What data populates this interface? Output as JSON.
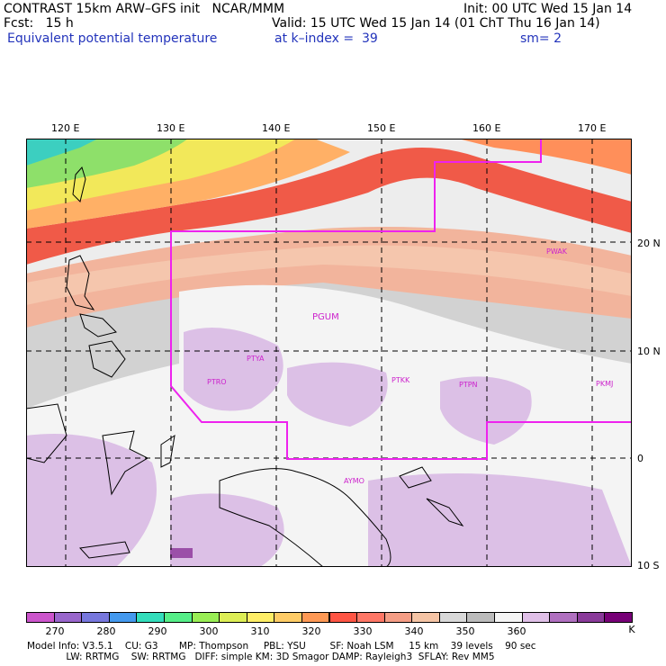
{
  "header": {
    "line1_left": "CONTRAST 15km ARW–GFS init   NCAR/MMM",
    "line1_right": "Init: 00 UTC Wed 15 Jan 14",
    "line2_left": "Fcst:   15 h",
    "line2_right": "Valid: 15 UTC Wed 15 Jan 14 (01 ChT Thu 16 Jan 14)",
    "line3_left": "Equivalent potential temperature",
    "line3_mid": "at k–index =  39",
    "line3_right": "sm= 2"
  },
  "map": {
    "lon_labels": [
      "120 E",
      "130 E",
      "140 E",
      "150 E",
      "160 E",
      "170 E"
    ],
    "lat_labels": [
      "20 N",
      "10 N",
      "0",
      "10 S"
    ],
    "stations": [
      "PWAK",
      "PGUM",
      "PTYA",
      "PTRO",
      "PTKK",
      "PTPN",
      "PKMJ",
      "AYMO"
    ]
  },
  "colorbar": {
    "labels": [
      "270",
      "280",
      "290",
      "300",
      "310",
      "320",
      "330",
      "340",
      "350",
      "360"
    ],
    "unit": "K",
    "colors": [
      "#cc55cc",
      "#9966cc",
      "#7777dd",
      "#4499ee",
      "#33ddbb",
      "#55ee88",
      "#99ee55",
      "#ddee55",
      "#ffee66",
      "#ffcc66",
      "#ff9955",
      "#ff5544",
      "#ff7766",
      "#f59d85",
      "#f5c4a5",
      "#d8d8d8",
      "#bbbbbb",
      "#f5f5f5",
      "#e0c0e8",
      "#b070c0",
      "#8a3a9a",
      "#770077"
    ]
  },
  "footer": {
    "line1": "Model Info: V3.5.1    CU: G3       MP: Thompson     PBL: YSU        SF: Noah LSM     15 km    39 levels    90 sec",
    "line2": "             LW: RRTMG    SW: RRTMG   DIFF: simple KM: 3D Smagor DAMP: Rayleigh3  SFLAY: Rev MM5"
  }
}
